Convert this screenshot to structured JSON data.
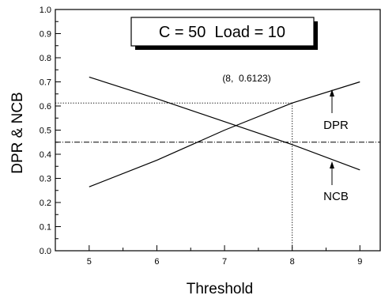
{
  "chart_data": {
    "type": "line",
    "title": "C = 50  Load = 10",
    "xlabel": "Threshold",
    "ylabel": "DPR & NCB",
    "xlim": [
      4.5,
      9.3
    ],
    "ylim": [
      0.0,
      1.0
    ],
    "x_ticks": [
      5,
      6,
      7,
      8,
      9
    ],
    "y_ticks": [
      0.0,
      0.1,
      0.2,
      0.3,
      0.4,
      0.5,
      0.6,
      0.7,
      0.8,
      0.9,
      1.0
    ],
    "grid": false,
    "series": [
      {
        "name": "DPR",
        "x": [
          5,
          6,
          7,
          8,
          9
        ],
        "y": [
          0.265,
          0.375,
          0.5,
          0.6123,
          0.7
        ]
      },
      {
        "name": "NCB",
        "x": [
          5,
          6,
          7,
          8,
          9
        ],
        "y": [
          0.72,
          0.63,
          0.535,
          0.44,
          0.335
        ]
      }
    ],
    "reference_lines": [
      {
        "orientation": "horizontal",
        "y": 0.45,
        "style": "dash-dot"
      },
      {
        "orientation": "horizontal",
        "y": 0.6123,
        "x_to": 8,
        "style": "dotted"
      },
      {
        "orientation": "vertical",
        "x": 8,
        "y_to": 0.6123,
        "style": "dotted"
      }
    ],
    "annotations": [
      {
        "text": "(8,  0.6123)",
        "x": 8,
        "y": 0.6123
      }
    ]
  }
}
